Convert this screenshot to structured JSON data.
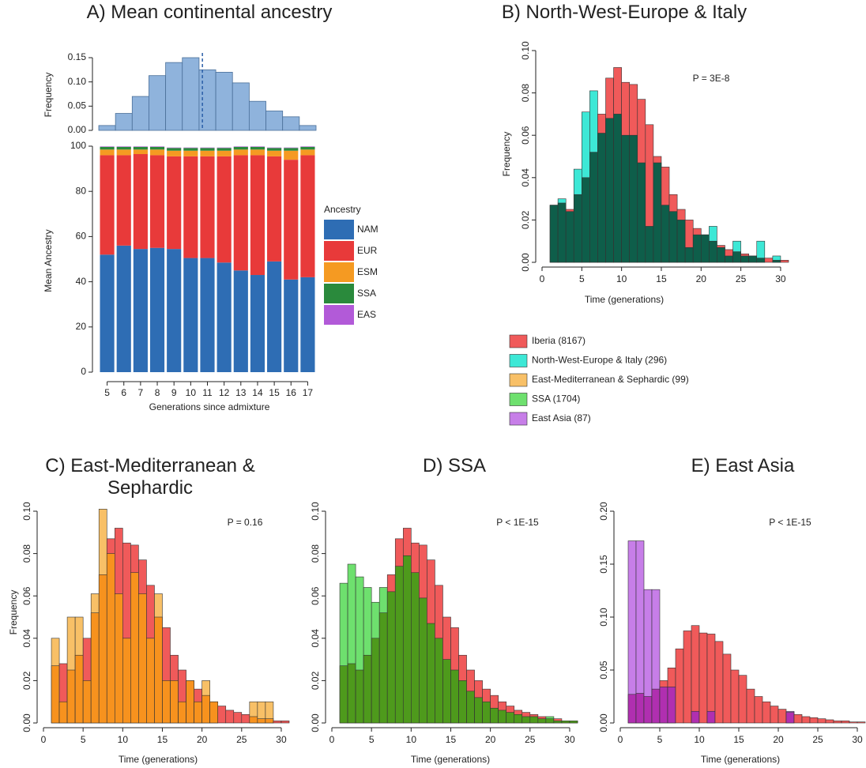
{
  "chart_data": [
    {
      "type": "histogram",
      "title": "A) Mean continental ancestry",
      "ylabel": "Frequency",
      "bins": [
        4.5,
        5.5,
        6.5,
        7.5,
        8.5,
        9.5,
        10.5,
        11.5,
        12.5,
        13.5,
        14.5,
        15.5,
        16.5,
        17.5
      ],
      "values": [
        0.01,
        0.035,
        0.07,
        0.113,
        0.14,
        0.15,
        0.125,
        0.12,
        0.098,
        0.06,
        0.04,
        0.028,
        0.01
      ],
      "color": "#8fb3dc",
      "mean": 10.7,
      "xlim": [
        4.5,
        17.5
      ],
      "ylim": [
        0,
        0.15
      ],
      "yticks": [
        {
          "value": 0,
          "label": "0.00"
        },
        0.05,
        {
          "value": 0.1,
          "label": "0.10"
        },
        0.15
      ]
    },
    {
      "type": "stacked_bar",
      "xlabel": "Generations since admixture",
      "ylabel": "Mean Ancestry",
      "legend_title": "Ancestry",
      "categories": [
        "5",
        "6",
        "7",
        "8",
        "9",
        "10",
        "11",
        "12",
        "13",
        "14",
        "15",
        "16",
        "17"
      ],
      "series": [
        {
          "name": "NAM",
          "color": "#2e6db4",
          "values": [
            52,
            56,
            54.5,
            55,
            54.5,
            50.5,
            50.5,
            48.5,
            45,
            43,
            49,
            41,
            42
          ]
        },
        {
          "name": "EUR",
          "color": "#e83a3a",
          "values": [
            44,
            40,
            42,
            41,
            41,
            45,
            45,
            47,
            51,
            53,
            46.5,
            53,
            54
          ]
        },
        {
          "name": "ESM",
          "color": "#f59a22",
          "values": [
            2.5,
            2.5,
            2,
            2.5,
            2.5,
            2.5,
            2.5,
            2.5,
            2.5,
            2.5,
            2.5,
            4,
            2.5
          ]
        },
        {
          "name": "SSA",
          "color": "#2a8a3c",
          "values": [
            1.2,
            1.2,
            1.2,
            1.2,
            1.2,
            1.2,
            1.2,
            1.2,
            1.2,
            1.2,
            1.2,
            1.2,
            1.2
          ]
        },
        {
          "name": "EAS",
          "color": "#b25ad8",
          "values": [
            0.2,
            0.2,
            0.2,
            0.2,
            0.2,
            0.2,
            0.2,
            0.2,
            0.2,
            0.2,
            0.2,
            0.2,
            0.2
          ]
        }
      ],
      "ylim": [
        0,
        100
      ],
      "yticks": [
        0,
        20,
        40,
        60,
        80,
        100
      ]
    },
    {
      "type": "overlap_histogram",
      "title": "B) North-West-Europe & Italy",
      "xlabel": "Time (generations)",
      "ylabel": "Frequency",
      "annotation": "P = 3E-8",
      "bins": [
        1,
        2,
        3,
        4,
        5,
        6,
        7,
        8,
        9,
        10,
        11,
        12,
        13,
        14,
        15,
        16,
        17,
        18,
        19,
        20,
        21,
        22,
        23,
        24,
        25,
        26,
        27,
        28,
        29,
        30,
        31
      ],
      "series": [
        {
          "name": "Iberia",
          "color": "#f05a5a",
          "values": [
            0.027,
            0.028,
            0.025,
            0.032,
            0.04,
            0.052,
            0.07,
            0.087,
            0.092,
            0.085,
            0.084,
            0.077,
            0.065,
            0.05,
            0.045,
            0.032,
            0.025,
            0.02,
            0.016,
            0.013,
            0.01,
            0.008,
            0.006,
            0.005,
            0.004,
            0.003,
            0.002,
            0.002,
            0.001,
            0.001
          ]
        },
        {
          "name": "North-West-Europe & Italy",
          "color": "#3de8d6",
          "values": [
            0.027,
            0.03,
            0.024,
            0.044,
            0.071,
            0.081,
            0.061,
            0.068,
            0.07,
            0.06,
            0.06,
            0.047,
            0.017,
            0.047,
            0.027,
            0.024,
            0.02,
            0.007,
            0.013,
            0.013,
            0.017,
            0.007,
            0.003,
            0.01,
            0.003,
            0.003,
            0.01,
            0,
            0.003,
            0
          ]
        }
      ],
      "overlap_color": "#0e5e4a",
      "xlim": [
        0,
        31
      ],
      "ylim": [
        0,
        0.1
      ],
      "xticks": [
        0,
        5,
        10,
        15,
        20,
        25,
        30
      ],
      "yticks": [
        {
          "value": 0,
          "label": "0.00"
        },
        0.02,
        0.04,
        0.06,
        0.08,
        {
          "value": 0.1,
          "label": "0.10"
        }
      ]
    },
    {
      "type": "overlap_histogram",
      "title": "C) East-Mediterranean & Sephardic",
      "xlabel": "Time (generations)",
      "ylabel": "Frequency",
      "annotation": "P = 0.16",
      "bins": [
        1,
        2,
        3,
        4,
        5,
        6,
        7,
        8,
        9,
        10,
        11,
        12,
        13,
        14,
        15,
        16,
        17,
        18,
        19,
        20,
        21,
        22,
        23,
        24,
        25,
        26,
        27,
        28,
        29,
        30,
        31
      ],
      "series": [
        {
          "name": "Iberia",
          "color": "#f05a5a",
          "values": [
            0.027,
            0.028,
            0.025,
            0.032,
            0.04,
            0.052,
            0.07,
            0.087,
            0.092,
            0.085,
            0.084,
            0.077,
            0.065,
            0.05,
            0.045,
            0.032,
            0.025,
            0.02,
            0.016,
            0.013,
            0.01,
            0.008,
            0.006,
            0.005,
            0.004,
            0.003,
            0.002,
            0.002,
            0.001,
            0.001
          ]
        },
        {
          "name": "East-Mediterranean & Sephardic",
          "color": "#f8c067",
          "values": [
            0.04,
            0.01,
            0.05,
            0.05,
            0.02,
            0.061,
            0.101,
            0.08,
            0.061,
            0.04,
            0.071,
            0.061,
            0.04,
            0.061,
            0.02,
            0.02,
            0.01,
            0.02,
            0.01,
            0.02,
            0.01,
            0,
            0,
            0,
            0,
            0.01,
            0.01,
            0.01,
            0,
            0
          ]
        }
      ],
      "overlap_color": "#f7921e",
      "xlim": [
        0,
        31
      ],
      "ylim": [
        0,
        0.1
      ],
      "xticks": [
        0,
        5,
        10,
        15,
        20,
        25,
        30
      ],
      "yticks": [
        {
          "value": 0,
          "label": "0.00"
        },
        0.02,
        0.04,
        0.06,
        0.08,
        {
          "value": 0.1,
          "label": "0.10"
        }
      ]
    },
    {
      "type": "overlap_histogram",
      "title": "D) SSA",
      "xlabel": "Time (generations)",
      "annotation": "P < 1E-15",
      "bins": [
        1,
        2,
        3,
        4,
        5,
        6,
        7,
        8,
        9,
        10,
        11,
        12,
        13,
        14,
        15,
        16,
        17,
        18,
        19,
        20,
        21,
        22,
        23,
        24,
        25,
        26,
        27,
        28,
        29,
        30,
        31
      ],
      "series": [
        {
          "name": "Iberia",
          "color": "#f05a5a",
          "values": [
            0.027,
            0.028,
            0.025,
            0.032,
            0.04,
            0.052,
            0.07,
            0.087,
            0.092,
            0.085,
            0.084,
            0.077,
            0.065,
            0.05,
            0.045,
            0.032,
            0.025,
            0.02,
            0.016,
            0.013,
            0.01,
            0.008,
            0.006,
            0.005,
            0.004,
            0.003,
            0.002,
            0.002,
            0.001,
            0.001
          ]
        },
        {
          "name": "SSA",
          "color": "#6ee06e",
          "values": [
            0.066,
            0.075,
            0.069,
            0.064,
            0.057,
            0.064,
            0.062,
            0.074,
            0.079,
            0.071,
            0.059,
            0.047,
            0.04,
            0.03,
            0.025,
            0.02,
            0.015,
            0.012,
            0.01,
            0.007,
            0.006,
            0.005,
            0.004,
            0.003,
            0.003,
            0.002,
            0.003,
            0.001,
            0.001,
            0.001
          ]
        }
      ],
      "overlap_color": "#4e9a1c",
      "xlim": [
        0,
        31
      ],
      "ylim": [
        0,
        0.1
      ],
      "xticks": [
        0,
        5,
        10,
        15,
        20,
        25,
        30
      ],
      "yticks": [
        {
          "value": 0,
          "label": "0.00"
        },
        0.02,
        0.04,
        0.06,
        0.08,
        {
          "value": 0.1,
          "label": "0.10"
        }
      ]
    },
    {
      "type": "overlap_histogram",
      "title": "E) East Asia",
      "xlabel": "Time (generations)",
      "annotation": "P < 1E-15",
      "bins": [
        1,
        2,
        3,
        4,
        5,
        6,
        7,
        8,
        9,
        10,
        11,
        12,
        13,
        14,
        15,
        16,
        17,
        18,
        19,
        20,
        21,
        22,
        23,
        24,
        25,
        26,
        27,
        28,
        29,
        30,
        31
      ],
      "series": [
        {
          "name": "Iberia",
          "color": "#f05a5a",
          "values": [
            0.027,
            0.028,
            0.025,
            0.032,
            0.04,
            0.052,
            0.07,
            0.087,
            0.092,
            0.085,
            0.084,
            0.077,
            0.065,
            0.05,
            0.045,
            0.032,
            0.025,
            0.02,
            0.016,
            0.013,
            0.01,
            0.008,
            0.006,
            0.005,
            0.004,
            0.003,
            0.002,
            0.002,
            0.001,
            0.001
          ]
        },
        {
          "name": "East Asia",
          "color": "#c77ee8",
          "values": [
            0.172,
            0.172,
            0.126,
            0.126,
            0.034,
            0.034,
            0,
            0,
            0.011,
            0,
            0.011,
            0,
            0,
            0,
            0,
            0,
            0,
            0,
            0,
            0,
            0.011,
            0,
            0,
            0,
            0,
            0,
            0,
            0,
            0,
            0
          ]
        }
      ],
      "overlap_color": "#b02fb0",
      "xlim": [
        0,
        31
      ],
      "ylim": [
        0,
        0.2
      ],
      "xticks": [
        0,
        5,
        10,
        15,
        20,
        25,
        30
      ],
      "yticks": [
        {
          "value": 0,
          "label": "0.00"
        },
        0.05,
        {
          "value": 0.1,
          "label": "0.10"
        },
        0.15,
        {
          "value": 0.2,
          "label": "0.20"
        }
      ]
    }
  ],
  "legend": [
    {
      "label": "Iberia (8167)",
      "color": "#f05a5a"
    },
    {
      "label": "North-West-Europe & Italy (296)",
      "color": "#3de8d6"
    },
    {
      "label": "East-Mediterranean & Sephardic (99)",
      "color": "#f8c067"
    },
    {
      "label": "SSA (1704)",
      "color": "#6ee06e"
    },
    {
      "label": "East Asia (87)",
      "color": "#c77ee8"
    }
  ]
}
